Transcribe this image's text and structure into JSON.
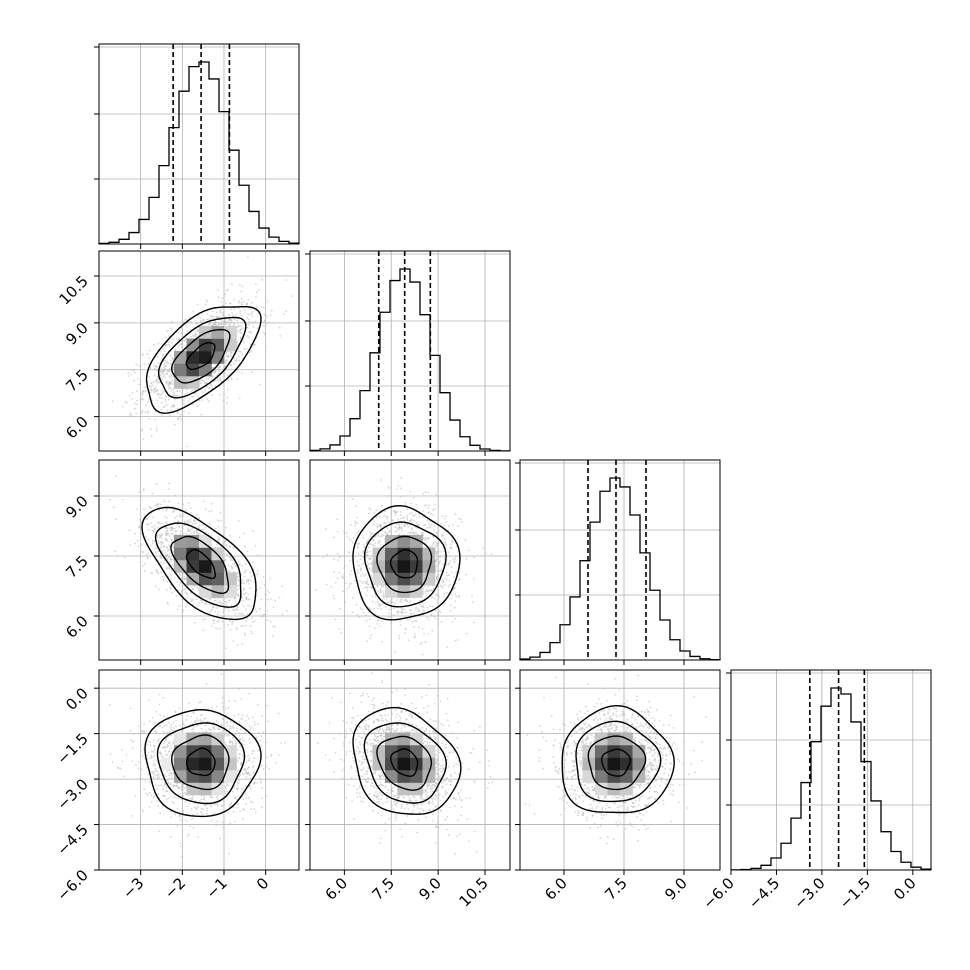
{
  "chart_data": {
    "type": "corner",
    "parameters": [
      {
        "index": 0,
        "range": [
          -4.0,
          0.8
        ],
        "ticks": [
          -3,
          -2,
          -1,
          0
        ],
        "tick_labels": [
          "−3",
          "−2",
          "−1",
          "0"
        ],
        "mean": -1.55,
        "sd": 0.68,
        "quantiles": [
          -2.22,
          -1.55,
          -0.87
        ]
      },
      {
        "index": 1,
        "range": [
          4.9,
          11.3
        ],
        "ticks": [
          6.0,
          7.5,
          9.0,
          10.5
        ],
        "tick_labels": [
          "6.0",
          "7.5",
          "9.0",
          "10.5"
        ],
        "mean": 7.93,
        "sd": 0.85,
        "quantiles": [
          7.1,
          7.93,
          8.75
        ]
      },
      {
        "index": 2,
        "range": [
          4.9,
          9.9
        ],
        "ticks": [
          6.0,
          7.5,
          9.0
        ],
        "tick_labels": [
          "6.0",
          "7.5",
          "9.0"
        ],
        "mean": 7.3,
        "sd": 0.7,
        "quantiles": [
          6.6,
          7.3,
          8.05
        ]
      },
      {
        "index": 3,
        "range": [
          -6.0,
          0.6
        ],
        "ticks": [
          -6.0,
          -4.5,
          -3.0,
          -1.5,
          0.0
        ],
        "tick_labels": [
          "−6.0",
          "−4.5",
          "−3.0",
          "−1.5",
          "0.0"
        ],
        "mean": -2.45,
        "sd": 0.88,
        "quantiles": [
          -3.4,
          -2.45,
          -1.6
        ]
      }
    ],
    "correlations": [
      {
        "row": 1,
        "col": 0,
        "rho": 0.6
      },
      {
        "row": 2,
        "col": 0,
        "rho": -0.6
      },
      {
        "row": 2,
        "col": 1,
        "rho": 0.0
      },
      {
        "row": 3,
        "col": 0,
        "rho": 0.0
      },
      {
        "row": 3,
        "col": 1,
        "rho": -0.2
      },
      {
        "row": 3,
        "col": 2,
        "rho": 0.0
      }
    ],
    "grid": true,
    "legend": "none",
    "colors": {
      "scatter": "#bdbdbd",
      "hist": "#000000",
      "contour": "#000000",
      "grid": "#b0b0b0"
    }
  }
}
